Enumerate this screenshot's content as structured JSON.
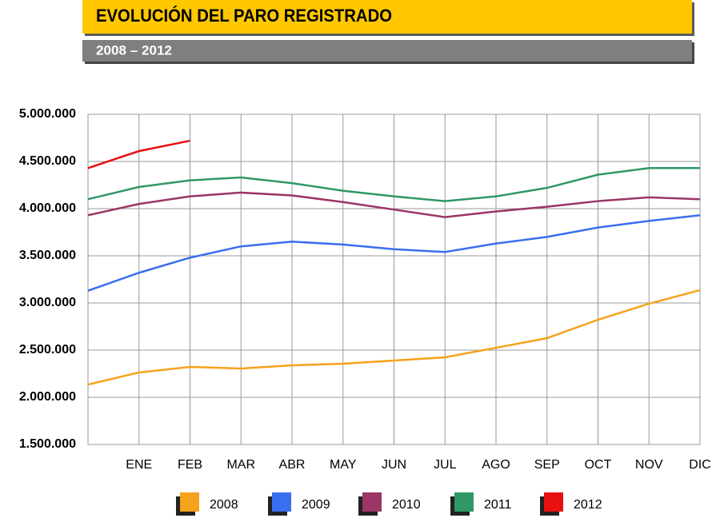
{
  "chart_data": {
    "type": "line",
    "title": "EVOLUCIÓN DEL PARO REGISTRADO",
    "subtitle": "2008 – 2012",
    "categories": [
      null,
      "ENE",
      "FEB",
      "MAR",
      "ABR",
      "MAY",
      "JUN",
      "JUL",
      "AGO",
      "SEP",
      "OCT",
      "NOV",
      "DIC"
    ],
    "series": [
      {
        "name": "2008",
        "color": "#f5a21c",
        "values": [
          2135000,
          2263000,
          2322000,
          2305000,
          2339000,
          2356000,
          2390000,
          2424000,
          2525000,
          2627000,
          2822000,
          2992000,
          3136000
        ]
      },
      {
        "name": "2009",
        "color": "#3a6ef0",
        "values": [
          3130000,
          3320000,
          3480000,
          3600000,
          3650000,
          3620000,
          3570000,
          3540000,
          3630000,
          3700000,
          3800000,
          3870000,
          3930000
        ]
      },
      {
        "name": "2010",
        "color": "#9a3566",
        "values": [
          3930000,
          4050000,
          4130000,
          4170000,
          4140000,
          4070000,
          3990000,
          3910000,
          3970000,
          4020000,
          4080000,
          4120000,
          4100000
        ]
      },
      {
        "name": "2011",
        "color": "#2f9866",
        "values": [
          4100000,
          4230000,
          4300000,
          4330000,
          4270000,
          4190000,
          4130000,
          4080000,
          4130000,
          4220000,
          4360000,
          4430000,
          4430000
        ]
      },
      {
        "name": "2012",
        "color": "#e81010",
        "values": [
          4430000,
          4610000,
          4720000,
          null,
          null,
          null,
          null,
          null,
          null,
          null,
          null,
          null,
          null
        ]
      }
    ],
    "ylim": [
      1500000,
      5000000
    ],
    "yticks": [
      {
        "value": 1500000,
        "label": "1.500.000"
      },
      {
        "value": 2000000,
        "label": "2.000.000"
      },
      {
        "value": 2500000,
        "label": "2.500.000"
      },
      {
        "value": 3000000,
        "label": "3.000.000"
      },
      {
        "value": 3500000,
        "label": "3.500.000"
      },
      {
        "value": 4000000,
        "label": "4.000.000"
      },
      {
        "value": 4500000,
        "label": "4.500.000"
      },
      {
        "value": 5000000,
        "label": "5.000.000"
      }
    ],
    "grid": true,
    "legend": "bottom"
  }
}
